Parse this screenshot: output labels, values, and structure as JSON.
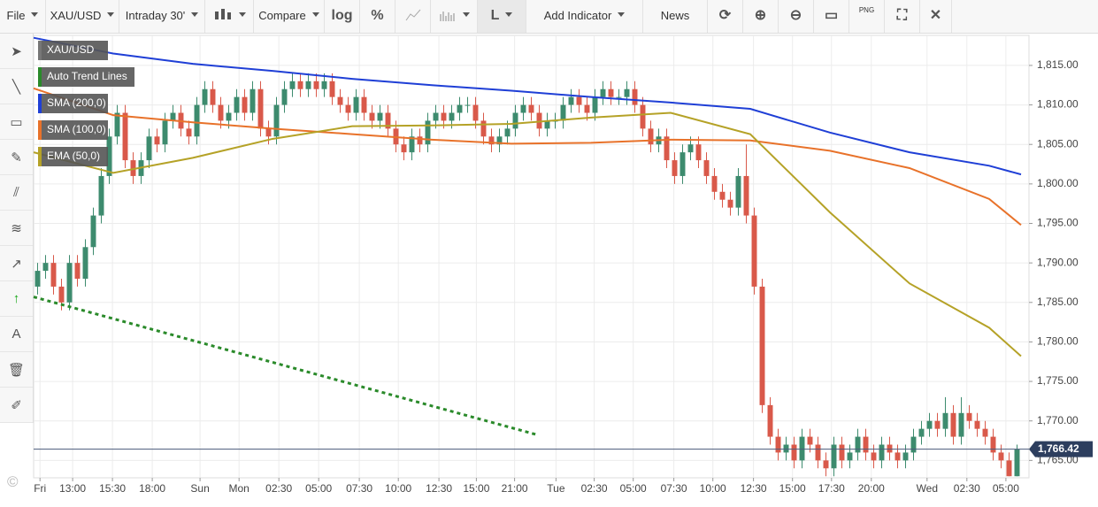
{
  "toolbar": {
    "file": "File",
    "symbol": "XAU/USD",
    "interval": "Intraday 30'",
    "compare": "Compare",
    "log": "log",
    "percent": "%",
    "line_style": "L",
    "add_indicator": "Add Indicator",
    "news": "News",
    "export": "PNG"
  },
  "watermark": "©",
  "chart_data": {
    "type": "candlestick",
    "name": "XAU/USD",
    "up_color": "#3d8b6e",
    "down_color": "#d9594a",
    "xlim": [
      0,
      125
    ],
    "ylim": [
      1762.8,
      1818.8
    ],
    "grid": true,
    "open": [
      1787,
      1789,
      1790,
      1787,
      1785,
      1790,
      1788,
      1792,
      1796,
      1801,
      1806,
      1809,
      1803,
      1801,
      1803,
      1806,
      1805,
      1808,
      1809,
      1807,
      1806,
      1810,
      1812,
      1810,
      1808,
      1809,
      1811,
      1809,
      1812,
      1807,
      1806,
      1810,
      1812,
      1813,
      1812,
      1813,
      1812,
      1813,
      1811,
      1810,
      1809,
      1811,
      1809,
      1808,
      1809,
      1807,
      1805,
      1804,
      1806,
      1805,
      1808,
      1809,
      1808,
      1809,
      1810,
      1810,
      1808,
      1806,
      1805,
      1806,
      1807,
      1809,
      1810,
      1809,
      1807,
      1808,
      1808,
      1810,
      1811,
      1810,
      1809,
      1811,
      1812,
      1811,
      1811,
      1812,
      1810,
      1807,
      1805,
      1806,
      1803,
      1801,
      1804,
      1805,
      1803,
      1801,
      1799,
      1798,
      1797,
      1801,
      1796,
      1787,
      1772,
      1768,
      1766,
      1767,
      1765,
      1768,
      1767,
      1765,
      1764,
      1767,
      1765,
      1766,
      1768,
      1766,
      1765,
      1767,
      1766,
      1765,
      1766,
      1768,
      1769,
      1770,
      1769,
      1771,
      1768,
      1771,
      1770,
      1769,
      1768,
      1766,
      1765,
      1763
    ],
    "high": [
      1790,
      1791,
      1791,
      1788,
      1791,
      1791,
      1793,
      1797,
      1802,
      1807,
      1810,
      1810,
      1804,
      1804,
      1807,
      1807,
      1809,
      1810,
      1810,
      1808,
      1811,
      1813,
      1813,
      1811,
      1810,
      1812,
      1812,
      1813,
      1813,
      1808,
      1811,
      1813,
      1814,
      1814,
      1814,
      1814,
      1814,
      1814,
      1812,
      1811,
      1812,
      1812,
      1810,
      1810,
      1810,
      1808,
      1806,
      1807,
      1807,
      1809,
      1810,
      1810,
      1810,
      1811,
      1811,
      1811,
      1809,
      1807,
      1807,
      1808,
      1810,
      1811,
      1811,
      1810,
      1809,
      1809,
      1811,
      1812,
      1812,
      1811,
      1812,
      1813,
      1813,
      1812,
      1813,
      1813,
      1811,
      1808,
      1807,
      1807,
      1804,
      1805,
      1806,
      1806,
      1804,
      1802,
      1800,
      1799,
      1802,
      1805,
      1797,
      1788,
      1773,
      1769,
      1768,
      1768,
      1769,
      1769,
      1768,
      1766,
      1768,
      1768,
      1767,
      1769,
      1769,
      1767,
      1768,
      1768,
      1767,
      1767,
      1769,
      1770,
      1771,
      1771,
      1773,
      1772,
      1773,
      1772,
      1771,
      1770,
      1769,
      1767,
      1766,
      1767
    ],
    "low": [
      1786,
      1788,
      1786,
      1784,
      1784,
      1787,
      1787,
      1791,
      1795,
      1800,
      1805,
      1802,
      1800,
      1800,
      1802,
      1804,
      1804,
      1807,
      1806,
      1805,
      1805,
      1809,
      1809,
      1807,
      1807,
      1808,
      1808,
      1808,
      1806,
      1805,
      1805,
      1809,
      1811,
      1811,
      1811,
      1811,
      1811,
      1810,
      1809,
      1808,
      1808,
      1808,
      1807,
      1807,
      1806,
      1804,
      1803,
      1803,
      1804,
      1804,
      1807,
      1807,
      1807,
      1808,
      1809,
      1807,
      1805,
      1804,
      1804,
      1805,
      1806,
      1808,
      1808,
      1806,
      1806,
      1807,
      1807,
      1809,
      1809,
      1808,
      1808,
      1810,
      1810,
      1810,
      1810,
      1809,
      1806,
      1804,
      1804,
      1802,
      1800,
      1800,
      1803,
      1802,
      1800,
      1798,
      1797,
      1796,
      1796,
      1795,
      1786,
      1771,
      1767,
      1765,
      1765,
      1764,
      1764,
      1766,
      1764,
      1763,
      1763,
      1764,
      1764,
      1765,
      1765,
      1764,
      1764,
      1765,
      1764,
      1764,
      1765,
      1767,
      1768,
      1768,
      1768,
      1767,
      1767,
      1769,
      1768,
      1767,
      1765,
      1764,
      1763,
      1763
    ],
    "close": [
      1789,
      1790,
      1787,
      1785,
      1790,
      1788,
      1792,
      1796,
      1801,
      1806,
      1809,
      1803,
      1801,
      1803,
      1806,
      1805,
      1808,
      1809,
      1807,
      1806,
      1810,
      1812,
      1810,
      1808,
      1809,
      1811,
      1809,
      1812,
      1807,
      1806,
      1810,
      1812,
      1813,
      1812,
      1813,
      1812,
      1813,
      1811,
      1810,
      1809,
      1811,
      1809,
      1808,
      1809,
      1807,
      1805,
      1804,
      1806,
      1805,
      1808,
      1809,
      1808,
      1809,
      1810,
      1810,
      1808,
      1806,
      1805,
      1806,
      1807,
      1809,
      1810,
      1809,
      1807,
      1808,
      1808,
      1810,
      1811,
      1810,
      1809,
      1811,
      1812,
      1811,
      1811,
      1812,
      1810,
      1807,
      1805,
      1806,
      1803,
      1801,
      1804,
      1805,
      1803,
      1801,
      1799,
      1798,
      1797,
      1801,
      1796,
      1787,
      1772,
      1768,
      1766,
      1767,
      1765,
      1768,
      1767,
      1765,
      1764,
      1767,
      1765,
      1766,
      1768,
      1766,
      1765,
      1767,
      1766,
      1765,
      1766,
      1768,
      1769,
      1770,
      1769,
      1771,
      1768,
      1771,
      1770,
      1769,
      1768,
      1766,
      1765,
      1763,
      1766.42
    ],
    "xticks": [
      {
        "value": 0.8,
        "label": "Fri"
      },
      {
        "value": 4.9,
        "label": "13:00"
      },
      {
        "value": 9.9,
        "label": "15:30"
      },
      {
        "value": 14.9,
        "label": "18:00"
      },
      {
        "value": 20.9,
        "label": "Sun"
      },
      {
        "value": 25.8,
        "label": "Mon"
      },
      {
        "value": 30.8,
        "label": "02:30"
      },
      {
        "value": 35.8,
        "label": "05:00"
      },
      {
        "value": 40.9,
        "label": "07:30"
      },
      {
        "value": 45.8,
        "label": "10:00"
      },
      {
        "value": 50.9,
        "label": "12:30"
      },
      {
        "value": 55.6,
        "label": "15:00"
      },
      {
        "value": 60.4,
        "label": "21:00"
      },
      {
        "value": 65.6,
        "label": "Tue"
      },
      {
        "value": 70.4,
        "label": "02:30"
      },
      {
        "value": 75.3,
        "label": "05:00"
      },
      {
        "value": 80.4,
        "label": "07:30"
      },
      {
        "value": 85.3,
        "label": "10:00"
      },
      {
        "value": 90.4,
        "label": "12:30"
      },
      {
        "value": 95.3,
        "label": "15:00"
      },
      {
        "value": 100.2,
        "label": "17:30"
      },
      {
        "value": 105.2,
        "label": "20:00"
      },
      {
        "value": 112.2,
        "label": "Wed"
      },
      {
        "value": 117.2,
        "label": "02:30"
      },
      {
        "value": 122.1,
        "label": "05:00"
      }
    ],
    "yticks": [
      {
        "value": 1765,
        "label": "1,765.00"
      },
      {
        "value": 1770,
        "label": "1,770.00"
      },
      {
        "value": 1775,
        "label": "1,775.00"
      },
      {
        "value": 1780,
        "label": "1,780.00"
      },
      {
        "value": 1785,
        "label": "1,785.00"
      },
      {
        "value": 1790,
        "label": "1,790.00"
      },
      {
        "value": 1795,
        "label": "1,795.00"
      },
      {
        "value": 1800,
        "label": "1,800.00"
      },
      {
        "value": 1805,
        "label": "1,805.00"
      },
      {
        "value": 1810,
        "label": "1,810.00"
      },
      {
        "value": 1815,
        "label": "1,815.00"
      }
    ],
    "trend_line": {
      "name": "Auto Trend Lines",
      "color": "#2a8a2a",
      "x": [
        0,
        63.4
      ],
      "values": [
        1785.7,
        1768.2
      ]
    },
    "overlays": [
      {
        "name": "SMA (200,0)",
        "color": "#1f3fd6",
        "x": [
          0,
          10,
          20,
          30,
          40,
          50,
          60,
          70,
          80,
          90,
          100,
          110,
          120,
          124
        ],
        "values": [
          1818.5,
          1816.5,
          1815.2,
          1814.3,
          1813.3,
          1812.5,
          1811.8,
          1811,
          1810.3,
          1809.5,
          1806.5,
          1804,
          1802.3,
          1801.2
        ]
      },
      {
        "name": "SMA (100,0)",
        "color": "#e8722a",
        "x": [
          0,
          10,
          20,
          30,
          40,
          50,
          60,
          70,
          80,
          90,
          100,
          110,
          120,
          124
        ],
        "values": [
          1812.1,
          1808.7,
          1807.8,
          1807,
          1806.3,
          1805.6,
          1805.1,
          1805.2,
          1805.6,
          1805.5,
          1804.2,
          1802,
          1798.1,
          1794.8
        ]
      },
      {
        "name": "EMA (50,0)",
        "color": "#b5a227",
        "x": [
          0,
          10,
          20,
          30,
          40,
          50,
          60,
          70,
          80,
          90,
          100,
          110,
          120,
          124
        ],
        "values": [
          1804,
          1801.4,
          1803.3,
          1805.7,
          1807.3,
          1807.4,
          1807.6,
          1808.4,
          1809,
          1806.3,
          1796.4,
          1787.4,
          1781.8,
          1778.2
        ]
      }
    ],
    "last_price": {
      "value": 1766.42,
      "label": "1,766.42"
    }
  }
}
